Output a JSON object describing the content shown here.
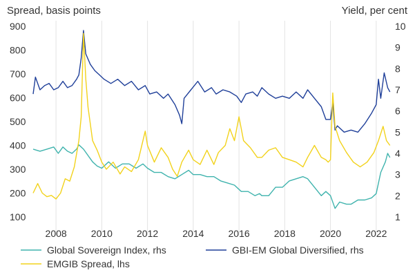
{
  "chart_data": {
    "type": "line",
    "title": "",
    "left_axis": {
      "label": "Spread, basis points",
      "ylim": [
        100,
        900
      ],
      "ticks": [
        900,
        800,
        700,
        600,
        500,
        400,
        300,
        200,
        100
      ]
    },
    "right_axis": {
      "label": "Yield, per cent",
      "ylim": [
        1,
        10
      ],
      "ticks": [
        10,
        9,
        8,
        7,
        6,
        5,
        4,
        3,
        2,
        1
      ]
    },
    "x_axis": {
      "xlim": [
        2007.0,
        2022.7
      ],
      "ticks": [
        2008,
        2010,
        2012,
        2014,
        2016,
        2018,
        2020,
        2022
      ]
    },
    "grid": "vertical",
    "legend_position": "bottom",
    "series": [
      {
        "name": "Global Sovereign Index, rhs",
        "axis": "right",
        "color": "#3fb3ad",
        "points": [
          [
            2007.0,
            4.2
          ],
          [
            2007.3,
            4.1
          ],
          [
            2007.6,
            4.2
          ],
          [
            2007.9,
            4.3
          ],
          [
            2008.1,
            4.0
          ],
          [
            2008.3,
            4.3
          ],
          [
            2008.5,
            4.1
          ],
          [
            2008.7,
            4.0
          ],
          [
            2008.9,
            4.2
          ],
          [
            2009.0,
            4.4
          ],
          [
            2009.2,
            4.2
          ],
          [
            2009.4,
            3.9
          ],
          [
            2009.6,
            3.6
          ],
          [
            2009.8,
            3.4
          ],
          [
            2010.0,
            3.3
          ],
          [
            2010.3,
            3.6
          ],
          [
            2010.6,
            3.3
          ],
          [
            2010.9,
            3.5
          ],
          [
            2011.2,
            3.5
          ],
          [
            2011.5,
            3.3
          ],
          [
            2011.8,
            3.5
          ],
          [
            2012.0,
            3.3
          ],
          [
            2012.3,
            3.1
          ],
          [
            2012.6,
            3.1
          ],
          [
            2012.9,
            2.9
          ],
          [
            2013.2,
            2.8
          ],
          [
            2013.5,
            3.0
          ],
          [
            2013.8,
            3.2
          ],
          [
            2014.0,
            3.0
          ],
          [
            2014.3,
            3.0
          ],
          [
            2014.6,
            2.9
          ],
          [
            2014.9,
            2.9
          ],
          [
            2015.2,
            2.7
          ],
          [
            2015.5,
            2.6
          ],
          [
            2015.8,
            2.5
          ],
          [
            2016.1,
            2.2
          ],
          [
            2016.4,
            2.2
          ],
          [
            2016.7,
            2.0
          ],
          [
            2016.9,
            2.1
          ],
          [
            2017.0,
            2.0
          ],
          [
            2017.3,
            2.0
          ],
          [
            2017.6,
            2.4
          ],
          [
            2017.9,
            2.4
          ],
          [
            2018.2,
            2.7
          ],
          [
            2018.5,
            2.8
          ],
          [
            2018.8,
            2.9
          ],
          [
            2019.0,
            2.8
          ],
          [
            2019.3,
            2.4
          ],
          [
            2019.6,
            2.0
          ],
          [
            2019.8,
            2.2
          ],
          [
            2020.0,
            2.0
          ],
          [
            2020.2,
            1.4
          ],
          [
            2020.4,
            1.7
          ],
          [
            2020.7,
            1.6
          ],
          [
            2020.9,
            1.6
          ],
          [
            2021.2,
            1.8
          ],
          [
            2021.5,
            1.8
          ],
          [
            2021.8,
            1.9
          ],
          [
            2022.0,
            2.1
          ],
          [
            2022.2,
            3.1
          ],
          [
            2022.4,
            3.6
          ],
          [
            2022.5,
            4.0
          ],
          [
            2022.6,
            3.8
          ]
        ]
      },
      {
        "name": "GBI-EM Global Diversified, rhs",
        "axis": "right",
        "color": "#1f3f99",
        "points": [
          [
            2007.0,
            6.8
          ],
          [
            2007.1,
            7.6
          ],
          [
            2007.3,
            7.0
          ],
          [
            2007.5,
            7.2
          ],
          [
            2007.7,
            7.3
          ],
          [
            2007.9,
            7.0
          ],
          [
            2008.1,
            7.1
          ],
          [
            2008.3,
            7.4
          ],
          [
            2008.5,
            7.1
          ],
          [
            2008.7,
            7.2
          ],
          [
            2008.9,
            7.5
          ],
          [
            2009.0,
            7.7
          ],
          [
            2009.1,
            8.5
          ],
          [
            2009.2,
            9.8
          ],
          [
            2009.3,
            8.7
          ],
          [
            2009.5,
            8.2
          ],
          [
            2009.7,
            7.9
          ],
          [
            2009.9,
            7.7
          ],
          [
            2010.1,
            7.5
          ],
          [
            2010.4,
            7.3
          ],
          [
            2010.7,
            7.5
          ],
          [
            2011.0,
            7.2
          ],
          [
            2011.3,
            7.4
          ],
          [
            2011.6,
            7.0
          ],
          [
            2011.9,
            7.2
          ],
          [
            2012.1,
            6.8
          ],
          [
            2012.4,
            6.9
          ],
          [
            2012.7,
            6.6
          ],
          [
            2012.9,
            6.8
          ],
          [
            2013.2,
            6.3
          ],
          [
            2013.4,
            5.8
          ],
          [
            2013.5,
            5.4
          ],
          [
            2013.6,
            6.6
          ],
          [
            2013.9,
            7.0
          ],
          [
            2014.2,
            7.4
          ],
          [
            2014.5,
            6.9
          ],
          [
            2014.8,
            7.1
          ],
          [
            2015.0,
            6.8
          ],
          [
            2015.3,
            7.0
          ],
          [
            2015.6,
            6.9
          ],
          [
            2015.9,
            6.7
          ],
          [
            2016.1,
            6.4
          ],
          [
            2016.3,
            6.8
          ],
          [
            2016.6,
            6.9
          ],
          [
            2016.8,
            6.7
          ],
          [
            2017.0,
            7.1
          ],
          [
            2017.3,
            6.8
          ],
          [
            2017.6,
            6.6
          ],
          [
            2017.9,
            6.7
          ],
          [
            2018.2,
            6.6
          ],
          [
            2018.5,
            6.9
          ],
          [
            2018.8,
            6.6
          ],
          [
            2019.0,
            7.0
          ],
          [
            2019.3,
            6.6
          ],
          [
            2019.6,
            6.2
          ],
          [
            2019.8,
            5.6
          ],
          [
            2020.0,
            5.6
          ],
          [
            2020.1,
            6.4
          ],
          [
            2020.2,
            5.1
          ],
          [
            2020.3,
            5.3
          ],
          [
            2020.6,
            5.0
          ],
          [
            2020.9,
            5.1
          ],
          [
            2021.2,
            5.0
          ],
          [
            2021.5,
            5.4
          ],
          [
            2021.8,
            5.9
          ],
          [
            2022.0,
            6.3
          ],
          [
            2022.1,
            7.5
          ],
          [
            2022.2,
            6.6
          ],
          [
            2022.35,
            7.8
          ],
          [
            2022.5,
            7.1
          ],
          [
            2022.6,
            6.9
          ]
        ]
      },
      {
        "name": "EMGIB Spread, lhs",
        "axis": "left",
        "color": "#f2d21b",
        "points": [
          [
            2007.0,
            200
          ],
          [
            2007.2,
            240
          ],
          [
            2007.4,
            200
          ],
          [
            2007.6,
            185
          ],
          [
            2007.8,
            190
          ],
          [
            2008.0,
            175
          ],
          [
            2008.2,
            200
          ],
          [
            2008.4,
            260
          ],
          [
            2008.6,
            250
          ],
          [
            2008.8,
            310
          ],
          [
            2009.0,
            420
          ],
          [
            2009.1,
            520
          ],
          [
            2009.2,
            870
          ],
          [
            2009.3,
            680
          ],
          [
            2009.4,
            560
          ],
          [
            2009.6,
            420
          ],
          [
            2009.8,
            380
          ],
          [
            2010.0,
            330
          ],
          [
            2010.2,
            300
          ],
          [
            2010.5,
            330
          ],
          [
            2010.8,
            280
          ],
          [
            2011.0,
            310
          ],
          [
            2011.3,
            290
          ],
          [
            2011.6,
            340
          ],
          [
            2011.9,
            460
          ],
          [
            2012.0,
            400
          ],
          [
            2012.3,
            330
          ],
          [
            2012.6,
            390
          ],
          [
            2012.9,
            350
          ],
          [
            2013.1,
            300
          ],
          [
            2013.3,
            270
          ],
          [
            2013.5,
            330
          ],
          [
            2013.8,
            380
          ],
          [
            2014.0,
            340
          ],
          [
            2014.3,
            320
          ],
          [
            2014.6,
            380
          ],
          [
            2014.9,
            320
          ],
          [
            2015.1,
            370
          ],
          [
            2015.4,
            400
          ],
          [
            2015.6,
            470
          ],
          [
            2015.8,
            420
          ],
          [
            2016.0,
            520
          ],
          [
            2016.2,
            420
          ],
          [
            2016.5,
            390
          ],
          [
            2016.8,
            350
          ],
          [
            2017.0,
            350
          ],
          [
            2017.3,
            380
          ],
          [
            2017.6,
            390
          ],
          [
            2017.9,
            350
          ],
          [
            2018.2,
            340
          ],
          [
            2018.5,
            330
          ],
          [
            2018.8,
            310
          ],
          [
            2019.0,
            350
          ],
          [
            2019.3,
            400
          ],
          [
            2019.6,
            350
          ],
          [
            2019.8,
            340
          ],
          [
            2019.9,
            330
          ],
          [
            2020.0,
            340
          ],
          [
            2020.1,
            620
          ],
          [
            2020.2,
            480
          ],
          [
            2020.4,
            420
          ],
          [
            2020.7,
            370
          ],
          [
            2021.0,
            330
          ],
          [
            2021.3,
            310
          ],
          [
            2021.6,
            330
          ],
          [
            2021.9,
            370
          ],
          [
            2022.1,
            420
          ],
          [
            2022.3,
            480
          ],
          [
            2022.45,
            420
          ],
          [
            2022.6,
            400
          ]
        ]
      }
    ]
  }
}
